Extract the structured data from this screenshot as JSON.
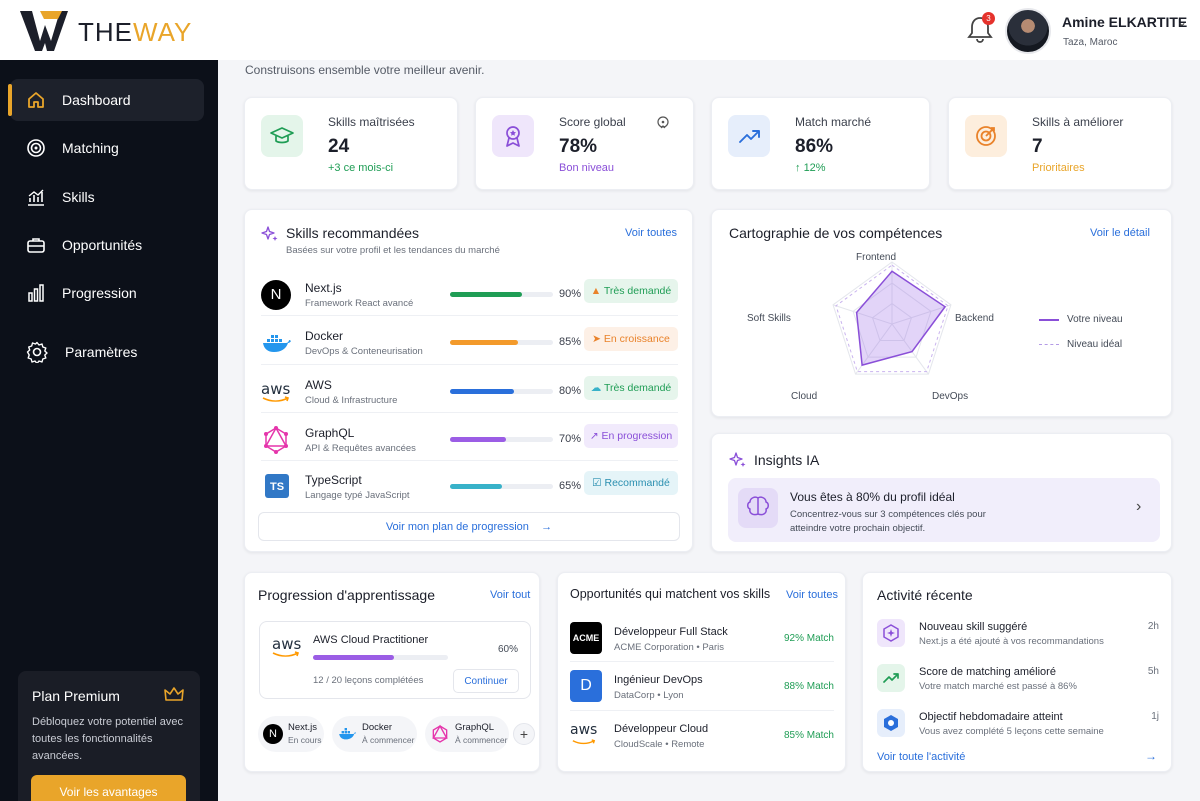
{
  "brand": {
    "name_dark": "THE",
    "name_accent": "WAY"
  },
  "header": {
    "notification_count": "3",
    "user_name": "Amine ELKARTITE",
    "user_location": "Taza, Maroc"
  },
  "sidebar": {
    "items": [
      {
        "label": "Dashboard",
        "icon": "home-icon",
        "active": true
      },
      {
        "label": "Matching",
        "icon": "target-icon"
      },
      {
        "label": "Skills",
        "icon": "chart-icon"
      },
      {
        "label": "Opportunités",
        "icon": "briefcase-icon"
      },
      {
        "label": "Progression",
        "icon": "bar-chart-icon"
      },
      {
        "label": "Paramètres",
        "icon": "gear-icon"
      }
    ],
    "premium": {
      "title": "Plan Premium",
      "description": "Débloquez votre potentiel avec toutes les fonctionnalités avancées.",
      "button": "Voir les avantages"
    }
  },
  "main": {
    "subtitle": "Construisons ensemble votre meilleur avenir.",
    "stats": [
      {
        "title": "Skills maîtrisées",
        "value": "24",
        "sub": "+3 ce mois-ci",
        "color": "#1f9d55"
      },
      {
        "title": "Score global",
        "value": "78%",
        "sub": "Bon niveau",
        "color": "#8a4fd8"
      },
      {
        "title": "Match marché",
        "value": "86%",
        "sub": "12%",
        "color": "#1f9d55"
      },
      {
        "title": "Skills à améliorer",
        "value": "7",
        "sub": "Prioritaires",
        "color": "#e9a52a"
      }
    ],
    "recommended": {
      "title": "Skills recommandées",
      "subtitle": "Basées sur votre profil et les tendances du marché",
      "link": "Voir toutes",
      "skills": [
        {
          "name": "Next.js",
          "desc": "Framework React avancé",
          "pct": "90%",
          "value": 0.9,
          "tag": "Très demandé",
          "bar": "#1f9d55"
        },
        {
          "name": "Docker",
          "desc": "DevOps & Conteneurisation",
          "pct": "85%",
          "value": 0.85,
          "tag": "En croissance",
          "bar": "#f39a2b"
        },
        {
          "name": "AWS",
          "desc": "Cloud & Infrastructure",
          "pct": "80%",
          "value": 0.8,
          "tag": "Très demandé",
          "bar": "#2a6fdb"
        },
        {
          "name": "GraphQL",
          "desc": "API & Requêtes avancées",
          "pct": "70%",
          "value": 0.7,
          "tag": "En progression",
          "bar": "#9b5de5"
        },
        {
          "name": "TypeScript",
          "desc": "Langage typé JavaScript",
          "pct": "65%",
          "value": 0.65,
          "tag": "Recommandé",
          "bar": "#38b2c9"
        }
      ],
      "plan_button": "Voir mon plan de progression"
    },
    "radar": {
      "title": "Cartographie de vos compétences",
      "link": "Voir le détail",
      "axes": [
        "Frontend",
        "Backend",
        "DevOps",
        "Cloud",
        "Soft Skills"
      ],
      "legend_current": "Votre niveau",
      "legend_ideal": "Niveau idéal",
      "values": [
        0.85,
        0.9,
        0.55,
        0.82,
        0.6
      ]
    },
    "insights": {
      "title": "Insights IA",
      "headline": "Vous êtes à 80% du profil idéal",
      "text": "Concentrez-vous sur 3 compétences clés pour atteindre votre prochain objectif."
    },
    "learning": {
      "title": "Progression d'apprentissage",
      "link": "Voir tout",
      "course": "AWS Cloud Practitioner",
      "pct": "60%",
      "value": 0.6,
      "lessons": "12 / 20 leçons complétées",
      "button": "Continuer",
      "chips": [
        {
          "name": "Next.js",
          "status": "En cours"
        },
        {
          "name": "Docker",
          "status": "À commencer"
        },
        {
          "name": "GraphQL",
          "status": "À commencer"
        }
      ],
      "more": "+"
    },
    "opportunities": {
      "title": "Opportunités qui matchent vos skills",
      "link": "Voir toutes",
      "items": [
        {
          "title": "Développeur Full Stack",
          "company": "ACME Corporation • Paris",
          "match": "92% Match",
          "logo": "ACME"
        },
        {
          "title": "Ingénieur DevOps",
          "company": "DataCorp • Lyon",
          "match": "88% Match",
          "logo": "D"
        },
        {
          "title": "Développeur Cloud",
          "company": "CloudScale • Remote",
          "match": "85% Match",
          "logo": "aws"
        }
      ]
    },
    "activity": {
      "title": "Activité récente",
      "items": [
        {
          "title": "Nouveau skill suggéré",
          "desc": "Next.js a été ajouté à vos recommandations",
          "time": "2h"
        },
        {
          "title": "Score de matching amélioré",
          "desc": "Votre match marché est passé à 86%",
          "time": "5h"
        },
        {
          "title": "Objectif hebdomadaire atteint",
          "desc": "Vous avez complété 5 leçons cette semaine",
          "time": "1j"
        }
      ],
      "link": "Voir toute l'activité"
    }
  }
}
